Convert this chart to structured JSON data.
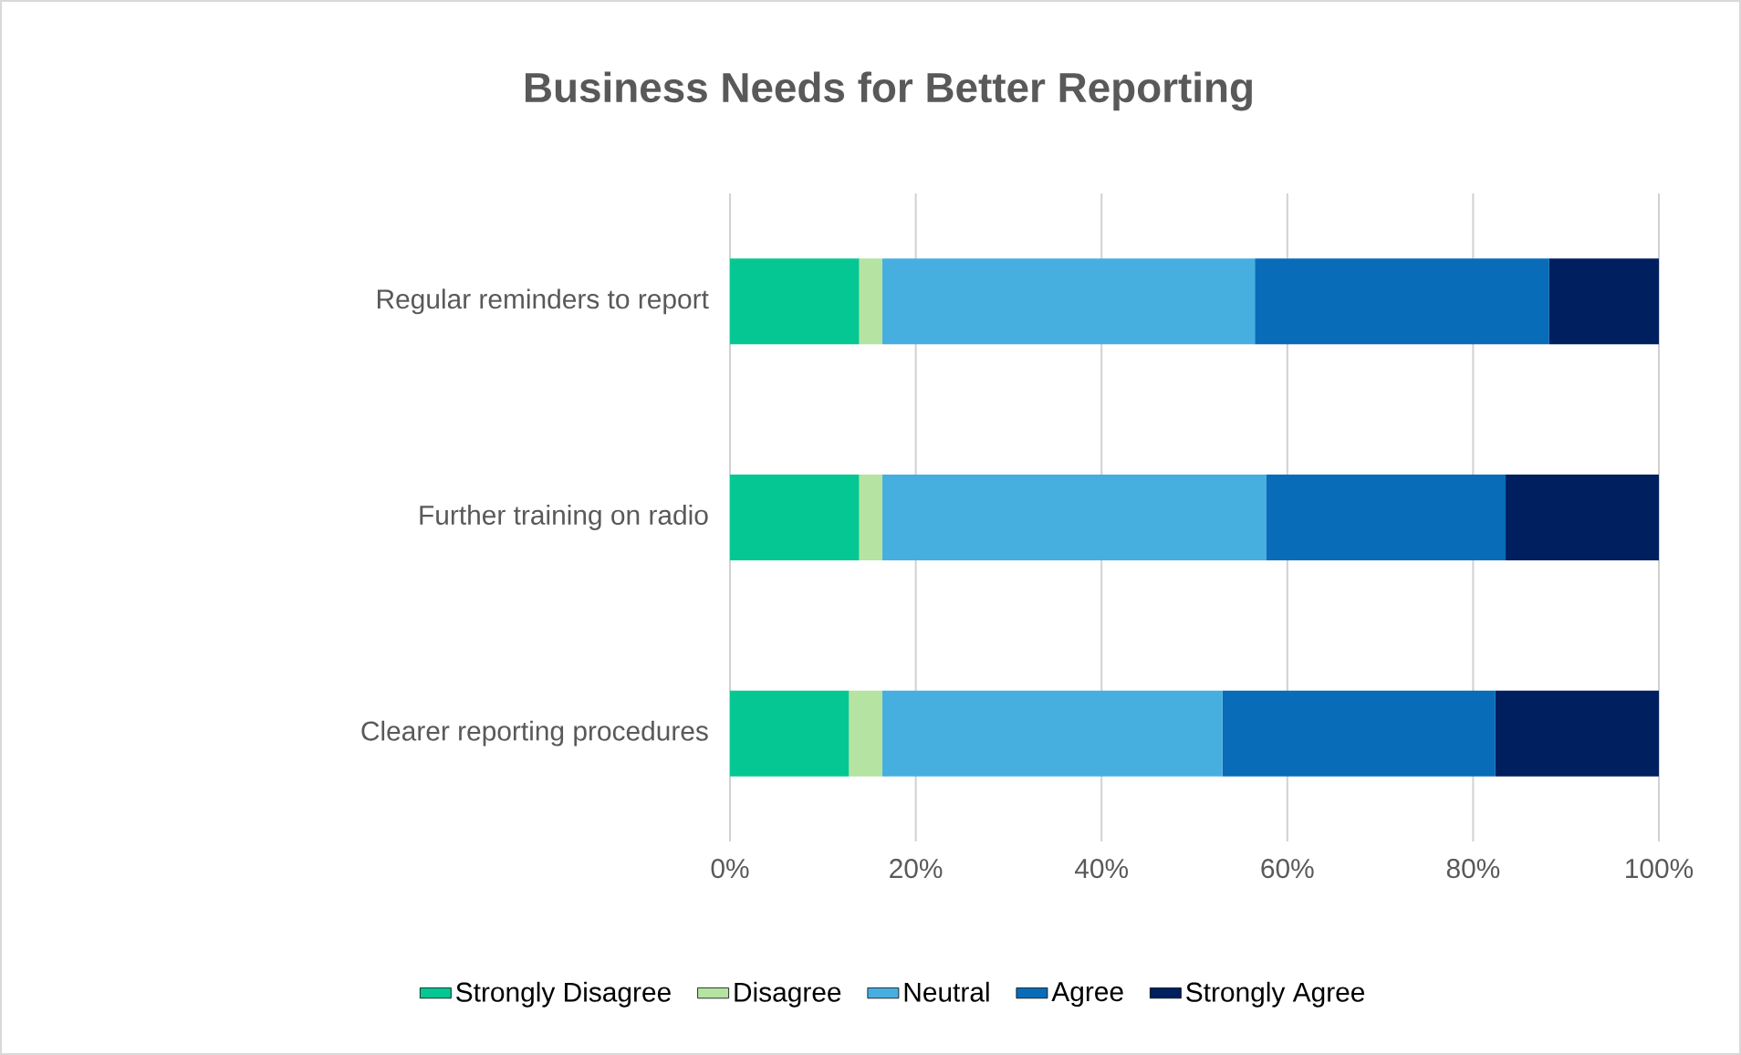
{
  "chart_data": {
    "type": "bar",
    "orientation": "horizontal",
    "stacked": true,
    "title": "Business Needs for Better Reporting",
    "categories": [
      "Regular reminders to report",
      "Further training on radio",
      "Clearer reporting procedures"
    ],
    "series": [
      {
        "name": "Strongly Disagree",
        "color": "#05c793",
        "values": [
          13.9,
          13.9,
          12.8
        ]
      },
      {
        "name": "Disagree",
        "color": "#b5e3a1",
        "values": [
          2.5,
          2.5,
          3.6
        ]
      },
      {
        "name": "Neutral",
        "color": "#47aee0",
        "values": [
          40.1,
          41.3,
          36.6
        ]
      },
      {
        "name": "Agree",
        "color": "#086cb8",
        "values": [
          31.7,
          25.8,
          29.4
        ]
      },
      {
        "name": "Strongly Agree",
        "color": "#001f5f",
        "values": [
          11.8,
          16.5,
          17.6
        ]
      }
    ],
    "xlim": [
      0,
      100
    ],
    "xticks": [
      {
        "value": 0,
        "label": "0%"
      },
      {
        "value": 20,
        "label": "20%"
      },
      {
        "value": 40,
        "label": "40%"
      },
      {
        "value": 60,
        "label": "60%"
      },
      {
        "value": 80,
        "label": "80%"
      },
      {
        "value": 100,
        "label": "100%"
      }
    ],
    "grid": "x",
    "legend": "bottom"
  }
}
